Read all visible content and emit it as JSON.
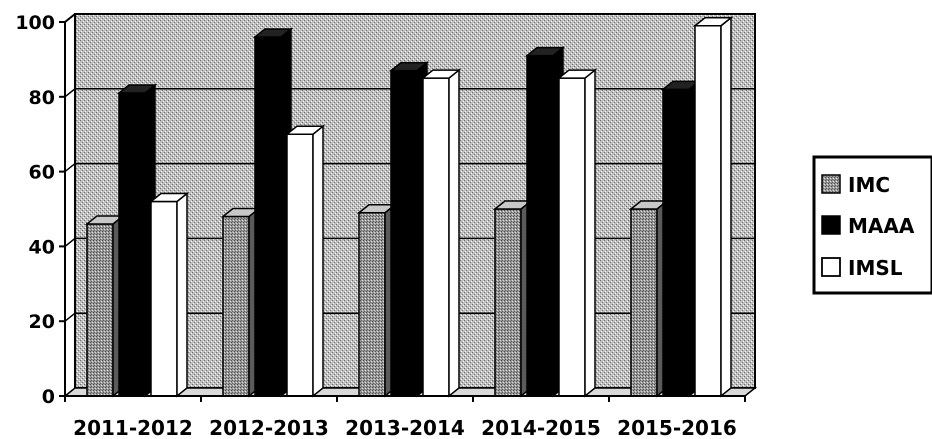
{
  "chart_data": {
    "type": "bar",
    "style": "3d-clustered",
    "categories": [
      "2011-2012",
      "2012-2013",
      "2013-2014",
      "2014-2015",
      "2015-2016"
    ],
    "series": [
      {
        "name": "IMC",
        "values": [
          46,
          48,
          49,
          50,
          50
        ],
        "color": "#8a8a8a"
      },
      {
        "name": "MAAA",
        "values": [
          81,
          96,
          87,
          91,
          82
        ],
        "color": "#000000"
      },
      {
        "name": "IMSL",
        "values": [
          52,
          70,
          85,
          85,
          99
        ],
        "color": "#ffffff"
      }
    ],
    "yticks": [
      0,
      20,
      40,
      60,
      80,
      100
    ],
    "ylim": [
      0,
      100
    ],
    "grid": true,
    "legend": "right",
    "title": "",
    "xlabel": "",
    "ylabel": ""
  }
}
